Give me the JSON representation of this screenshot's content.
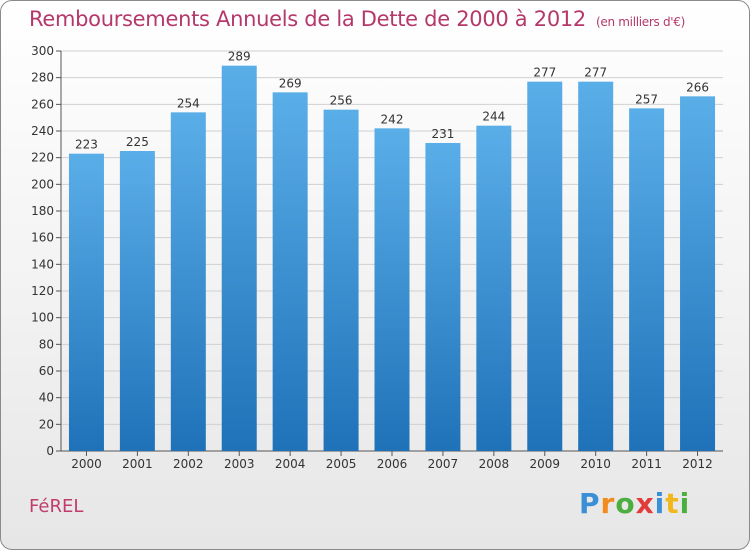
{
  "header": {
    "title": "Remboursements Annuels de la Dette de 2000 à 2012",
    "unit": "(en milliers d'€)"
  },
  "footer": {
    "town": "FéREL",
    "logo_letters": [
      "P",
      "r",
      "o",
      "x",
      "i",
      "t",
      "i"
    ],
    "logo_colors": [
      "#3a8fd6",
      "#f28a1c",
      "#4cae3f",
      "#e23b3b",
      "#3a8fd6",
      "#f2b71c",
      "#4cae3f"
    ]
  },
  "colors": {
    "bar_top": "#5aaee8",
    "bar_bottom": "#1f72b8",
    "grid": "#d0d0d0",
    "axis": "#555555"
  },
  "chart_data": {
    "type": "bar",
    "categories": [
      "2000",
      "2001",
      "2002",
      "2003",
      "2004",
      "2005",
      "2006",
      "2007",
      "2008",
      "2009",
      "2010",
      "2011",
      "2012"
    ],
    "values": [
      223,
      225,
      254,
      289,
      269,
      256,
      242,
      231,
      244,
      277,
      277,
      257,
      266
    ],
    "ylim": [
      0,
      300
    ],
    "yticks": [
      0,
      20,
      40,
      60,
      80,
      100,
      120,
      140,
      160,
      180,
      200,
      220,
      240,
      260,
      280,
      300
    ],
    "grid": true,
    "data_labels": true
  }
}
